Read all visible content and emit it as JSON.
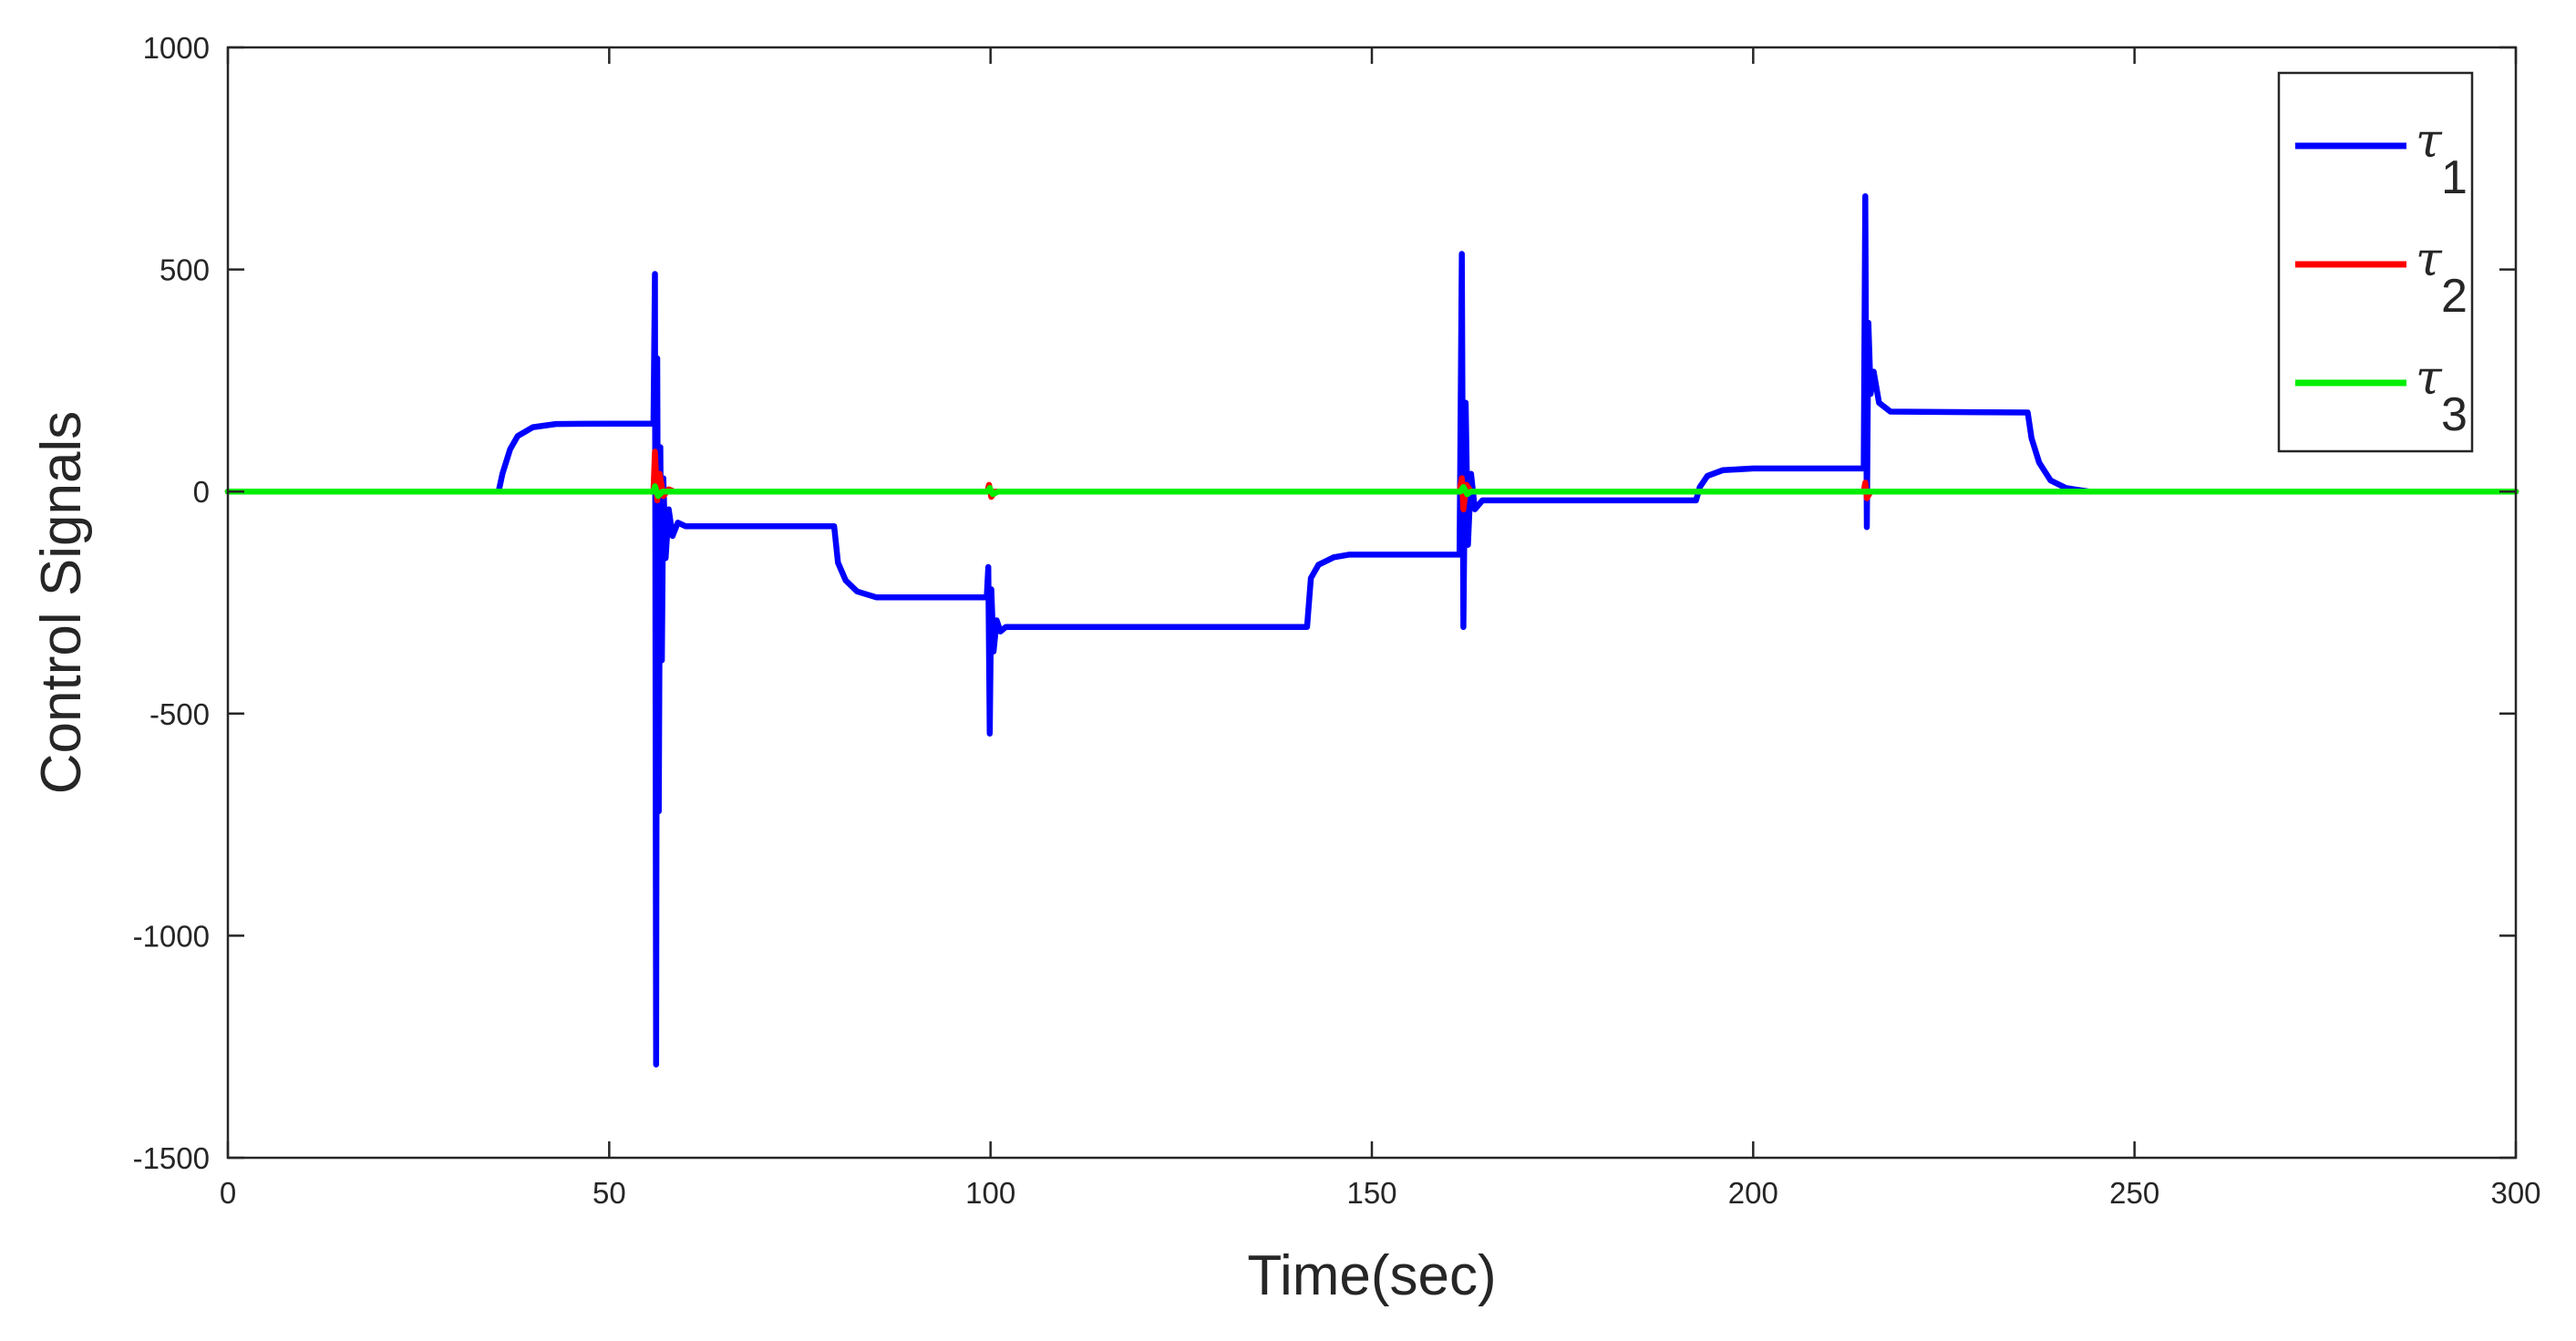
{
  "chart_data": {
    "type": "line",
    "title": "",
    "xlabel": "Time(sec)",
    "ylabel": "Control Signals",
    "xlim": [
      0,
      300
    ],
    "ylim": [
      -1500,
      1000
    ],
    "xticks": [
      0,
      50,
      100,
      150,
      200,
      250,
      300
    ],
    "yticks": [
      -1500,
      -1000,
      -500,
      0,
      500,
      1000
    ],
    "grid": false,
    "box": true,
    "legend_position": "top-right",
    "series": [
      {
        "name": "τ",
        "subscript": "1",
        "color": "#0000ff",
        "points": [
          [
            0,
            0
          ],
          [
            35.5,
            0
          ],
          [
            36,
            40
          ],
          [
            37,
            95
          ],
          [
            38,
            125
          ],
          [
            40,
            145
          ],
          [
            43,
            152
          ],
          [
            50,
            153
          ],
          [
            55.8,
            153
          ],
          [
            56,
            490
          ],
          [
            56.15,
            -1290
          ],
          [
            56.3,
            300
          ],
          [
            56.5,
            -720
          ],
          [
            56.7,
            100
          ],
          [
            56.9,
            -380
          ],
          [
            57.1,
            30
          ],
          [
            57.4,
            -150
          ],
          [
            57.8,
            -40
          ],
          [
            58.3,
            -100
          ],
          [
            59,
            -70
          ],
          [
            60,
            -78
          ],
          [
            70,
            -78
          ],
          [
            79.5,
            -78
          ],
          [
            80,
            -160
          ],
          [
            81,
            -200
          ],
          [
            82.5,
            -225
          ],
          [
            85,
            -238
          ],
          [
            99.5,
            -238
          ],
          [
            99.7,
            -170
          ],
          [
            99.9,
            -545
          ],
          [
            100.1,
            -220
          ],
          [
            100.4,
            -360
          ],
          [
            100.8,
            -290
          ],
          [
            101.3,
            -315
          ],
          [
            102,
            -305
          ],
          [
            141.5,
            -305
          ],
          [
            142,
            -195
          ],
          [
            143,
            -165
          ],
          [
            145,
            -148
          ],
          [
            147,
            -142
          ],
          [
            161.5,
            -142
          ],
          [
            161.8,
            535
          ],
          [
            162,
            -305
          ],
          [
            162.3,
            200
          ],
          [
            162.6,
            -120
          ],
          [
            163,
            40
          ],
          [
            163.5,
            -40
          ],
          [
            164.5,
            -20
          ],
          [
            170,
            -20
          ],
          [
            192.5,
            -20
          ],
          [
            193,
            10
          ],
          [
            194,
            35
          ],
          [
            196,
            48
          ],
          [
            200,
            52
          ],
          [
            214.5,
            52
          ],
          [
            214.7,
            665
          ],
          [
            214.9,
            -80
          ],
          [
            215.1,
            380
          ],
          [
            215.4,
            220
          ],
          [
            215.8,
            270
          ],
          [
            216.5,
            200
          ],
          [
            218,
            180
          ],
          [
            236,
            178
          ],
          [
            236.5,
            120
          ],
          [
            237.5,
            65
          ],
          [
            239,
            25
          ],
          [
            241,
            8
          ],
          [
            244,
            0
          ],
          [
            300,
            0
          ]
        ]
      },
      {
        "name": "τ",
        "subscript": "2",
        "color": "#ff0000",
        "points": [
          [
            0,
            0
          ],
          [
            55.8,
            0
          ],
          [
            56,
            90
          ],
          [
            56.3,
            -20
          ],
          [
            56.6,
            40
          ],
          [
            57.1,
            -10
          ],
          [
            57.8,
            5
          ],
          [
            58.5,
            0
          ],
          [
            99.6,
            0
          ],
          [
            99.8,
            15
          ],
          [
            100.1,
            -12
          ],
          [
            100.6,
            0
          ],
          [
            161.5,
            0
          ],
          [
            161.8,
            30
          ],
          [
            162,
            -40
          ],
          [
            162.4,
            15
          ],
          [
            163,
            0
          ],
          [
            214.5,
            0
          ],
          [
            214.7,
            20
          ],
          [
            214.9,
            -15
          ],
          [
            215.4,
            0
          ],
          [
            300,
            0
          ]
        ]
      },
      {
        "name": "τ",
        "subscript": "3",
        "color": "#00ee00",
        "points": [
          [
            0,
            0
          ],
          [
            55.8,
            0
          ],
          [
            56,
            12
          ],
          [
            56.4,
            -10
          ],
          [
            57,
            0
          ],
          [
            99.6,
            0
          ],
          [
            99.9,
            8
          ],
          [
            100.3,
            -6
          ],
          [
            101,
            0
          ],
          [
            161.6,
            0
          ],
          [
            162,
            10
          ],
          [
            162.5,
            -6
          ],
          [
            163,
            0
          ],
          [
            300,
            0
          ]
        ]
      }
    ]
  }
}
